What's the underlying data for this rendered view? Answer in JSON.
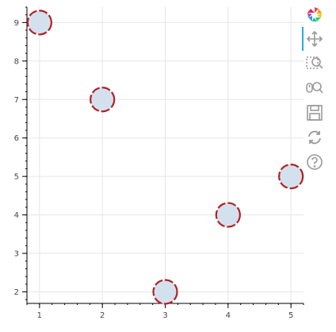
{
  "chart_data": {
    "type": "scatter",
    "x": [
      1,
      2,
      3,
      4,
      5
    ],
    "y": [
      9,
      7,
      2,
      4,
      5
    ],
    "xlim": [
      0.8,
      5.2
    ],
    "ylim": [
      1.7,
      9.4
    ],
    "x_ticks": [
      "1",
      "2",
      "3",
      "4",
      "5"
    ],
    "y_ticks": [
      "2",
      "3",
      "4",
      "5",
      "6",
      "7",
      "8",
      "9"
    ],
    "grid": true,
    "marker": {
      "shape": "circle",
      "fill": "#d3e1ef",
      "line": "#b22222",
      "line_dash": "dashed"
    }
  },
  "toolbar": {
    "tools": [
      {
        "name": "bokeh-logo-icon"
      },
      {
        "name": "pan-icon",
        "active": true
      },
      {
        "name": "box-zoom-icon"
      },
      {
        "name": "wheel-zoom-icon"
      },
      {
        "name": "save-icon"
      },
      {
        "name": "reset-icon"
      },
      {
        "name": "help-icon"
      }
    ]
  }
}
